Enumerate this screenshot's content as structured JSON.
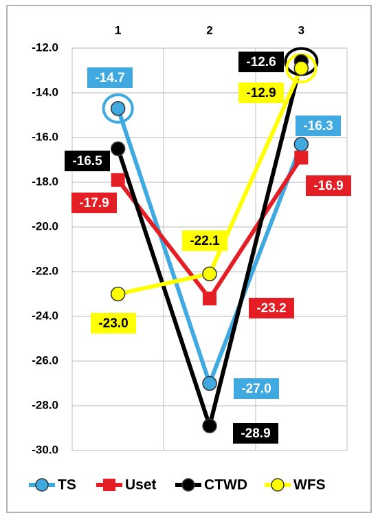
{
  "chart_data": {
    "type": "line",
    "categories": [
      "1",
      "2",
      "3"
    ],
    "ylim": [
      -30,
      -12
    ],
    "yticks": [
      {
        "value": -30,
        "label": "-30.0"
      },
      {
        "value": -28,
        "label": "-28.0"
      },
      {
        "value": -26,
        "label": "-26.0"
      },
      {
        "value": -24,
        "label": "-24.0"
      },
      {
        "value": -22,
        "label": "-22.0"
      },
      {
        "value": -20,
        "label": "-20.0"
      },
      {
        "value": -18,
        "label": "-18.0"
      },
      {
        "value": -16,
        "label": "-16.0"
      },
      {
        "value": -14,
        "label": "-14.0"
      },
      {
        "value": -12,
        "label": "-12.0"
      }
    ],
    "grid": true,
    "legend": "bottom",
    "series": [
      {
        "name": "TS",
        "color": "#3fa9e0",
        "marker": "circle",
        "values": [
          -14.7,
          -27.0,
          -16.3
        ],
        "value_labels": [
          "-14.7",
          "-27.0",
          "-16.3"
        ]
      },
      {
        "name": "Uset",
        "color": "#e31e24",
        "marker": "square",
        "values": [
          -17.9,
          -23.2,
          -16.9
        ],
        "value_labels": [
          "-17.9",
          "-23.2",
          "-16.9"
        ]
      },
      {
        "name": "CTWD",
        "color": "#000000",
        "marker": "circle",
        "values": [
          -16.5,
          -28.9,
          -12.6
        ],
        "value_labels": [
          "-16.5",
          "-28.9",
          "-12.6"
        ]
      },
      {
        "name": "WFS",
        "color": "#ffff00",
        "marker": "circle",
        "values": [
          -23.0,
          -22.1,
          -12.9
        ],
        "value_labels": [
          "-23.0",
          "-22.1",
          "-12.9"
        ]
      }
    ]
  }
}
